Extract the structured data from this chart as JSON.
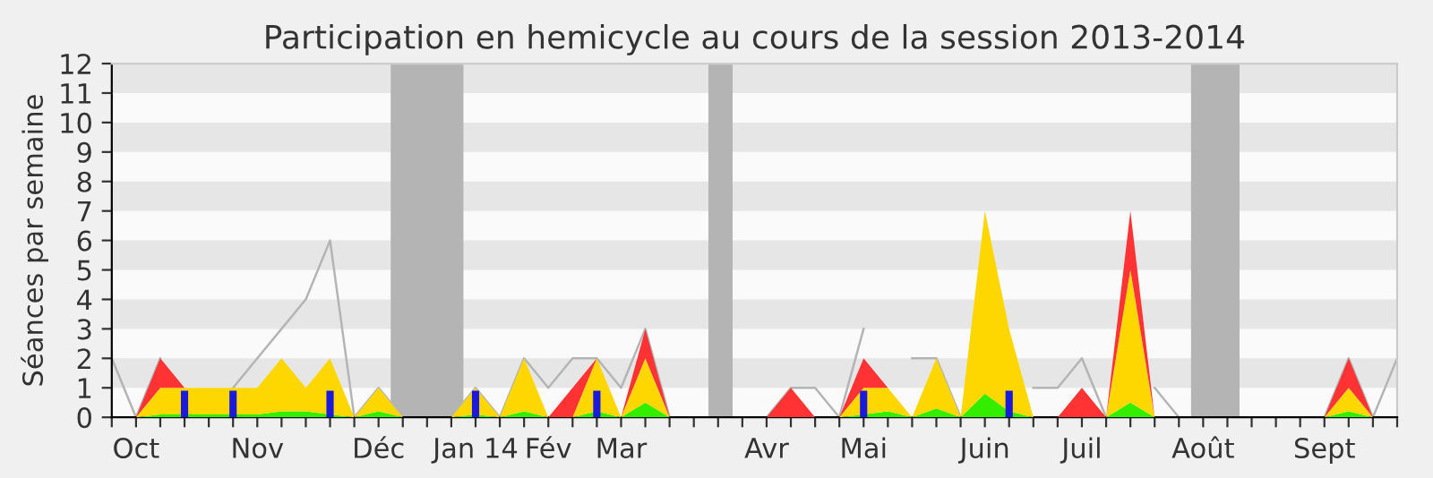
{
  "chart_data": {
    "type": "area",
    "stacked": true,
    "title": "Participation en hemicycle au cours de la session 2013-2014",
    "ylabel": "Séances par semaine",
    "categories": [
      null,
      "Oct",
      null,
      null,
      null,
      null,
      "Nov",
      null,
      null,
      null,
      null,
      "Déc",
      null,
      null,
      null,
      "Jan 14",
      null,
      null,
      "Fév",
      null,
      null,
      "Mar",
      null,
      null,
      null,
      null,
      null,
      "Avr",
      null,
      null,
      null,
      "Mai",
      null,
      null,
      null,
      null,
      "Juin",
      null,
      null,
      null,
      "Juil",
      null,
      null,
      null,
      null,
      "Août",
      null,
      null,
      null,
      null,
      "Sept",
      null,
      null,
      null
    ],
    "series": [
      {
        "type": "line",
        "color": "#b4b4b4",
        "values": [
          2,
          0,
          2,
          null,
          null,
          1,
          2,
          3,
          4,
          6,
          0,
          1,
          0,
          0,
          0,
          1,
          0,
          2,
          1,
          2,
          2,
          1,
          3,
          0,
          0,
          0,
          0,
          0,
          1,
          1,
          0,
          3,
          null,
          2,
          2,
          0,
          null,
          null,
          1,
          1,
          2,
          0,
          null,
          1,
          0,
          0,
          0,
          0,
          0,
          0,
          0,
          2,
          0,
          2
        ]
      },
      {
        "color": "#33ee00",
        "values": [
          0,
          0,
          0.1,
          0.1,
          0.1,
          0.1,
          0.1,
          0.2,
          0.2,
          0.1,
          0,
          0.2,
          0,
          0,
          0,
          0.1,
          0,
          0.2,
          0,
          0,
          0.2,
          0,
          0.5,
          0,
          0,
          0,
          0,
          0,
          0,
          0,
          0,
          0.1,
          0.2,
          0,
          0.3,
          0,
          0.8,
          0.2,
          0,
          0,
          0,
          0,
          0.5,
          0,
          0,
          0,
          0,
          0,
          0,
          0,
          0,
          0.2,
          0,
          0
        ]
      },
      {
        "color": "#ffd700",
        "values": [
          0,
          0,
          0.9,
          0.9,
          0.9,
          0.9,
          0.9,
          1.8,
          0.8,
          1.9,
          0,
          0.8,
          0,
          0,
          0,
          0.9,
          0,
          1.8,
          0,
          0,
          1.8,
          0,
          1.5,
          0,
          0,
          0,
          0,
          0,
          0,
          0,
          0,
          0.9,
          0.8,
          0,
          1.7,
          0,
          6.2,
          2.8,
          0,
          0,
          0,
          0,
          4.5,
          0,
          0,
          0,
          0,
          0,
          0,
          0,
          0,
          0.8,
          0,
          0
        ]
      },
      {
        "color": "#ff3333",
        "values": [
          null,
          0,
          1,
          0,
          null,
          null,
          null,
          null,
          null,
          null,
          null,
          null,
          null,
          null,
          null,
          null,
          null,
          null,
          0,
          1,
          0,
          0,
          1,
          0,
          null,
          null,
          null,
          0,
          1,
          0,
          0,
          1,
          0,
          null,
          null,
          null,
          null,
          null,
          null,
          0,
          1,
          0,
          2,
          0,
          null,
          null,
          null,
          null,
          null,
          null,
          0,
          1,
          0,
          null
        ]
      },
      {
        "type": "bar",
        "color": "#1a1add",
        "values": [
          null,
          null,
          null,
          0.9,
          null,
          0.9,
          null,
          null,
          null,
          0.9,
          null,
          null,
          null,
          null,
          null,
          0.9,
          null,
          null,
          null,
          null,
          0.9,
          null,
          null,
          null,
          null,
          null,
          null,
          null,
          null,
          null,
          null,
          0.9,
          null,
          null,
          null,
          null,
          null,
          0.9,
          null,
          null,
          null,
          null,
          null,
          null,
          null,
          null,
          null,
          null,
          null,
          null,
          null,
          null,
          null,
          null
        ]
      }
    ],
    "ylim": [
      0,
      12
    ],
    "yticks": [
      0,
      1,
      2,
      3,
      4,
      5,
      6,
      7,
      8,
      9,
      10,
      11,
      12
    ],
    "bands": [
      {
        "axis": "y",
        "from": 1,
        "to": 2,
        "color": "#e6e6e6"
      },
      {
        "axis": "y",
        "from": 3,
        "to": 4,
        "color": "#e6e6e6"
      },
      {
        "axis": "y",
        "from": 5,
        "to": 6,
        "color": "#e6e6e6"
      },
      {
        "axis": "y",
        "from": 7,
        "to": 8,
        "color": "#e6e6e6"
      },
      {
        "axis": "y",
        "from": 9,
        "to": 10,
        "color": "#e6e6e6"
      },
      {
        "axis": "y",
        "from": 11,
        "to": 12,
        "color": "#e6e6e6"
      }
    ],
    "grid": false,
    "legend": false
  }
}
